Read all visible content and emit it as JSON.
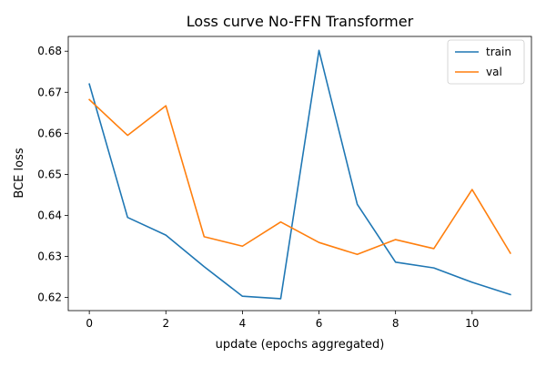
{
  "chart_data": {
    "type": "line",
    "title": "Loss curve No-FFN Transformer",
    "xlabel": "update (epochs aggregated)",
    "ylabel": "BCE loss",
    "x": [
      0,
      1,
      2,
      3,
      4,
      5,
      6,
      7,
      8,
      9,
      10,
      11
    ],
    "xlim": [
      -0.55,
      11.55
    ],
    "ylim": [
      0.6168,
      0.6836
    ],
    "xticks": [
      0,
      2,
      4,
      6,
      8,
      10
    ],
    "yticks": [
      0.62,
      0.63,
      0.64,
      0.65,
      0.66,
      0.67,
      0.68
    ],
    "grid": false,
    "legend": {
      "position": "top-right"
    },
    "series": [
      {
        "name": "train",
        "color": "#1f77b4",
        "values": [
          0.672,
          0.6395,
          0.6352,
          0.6275,
          0.6203,
          0.6197,
          0.6802,
          0.6427,
          0.6286,
          0.6272,
          0.6237,
          0.6207
        ]
      },
      {
        "name": "val",
        "color": "#ff7f0e",
        "values": [
          0.6682,
          0.6595,
          0.6667,
          0.6348,
          0.6325,
          0.6384,
          0.6334,
          0.6305,
          0.6341,
          0.6319,
          0.6463,
          0.6308
        ]
      }
    ]
  }
}
